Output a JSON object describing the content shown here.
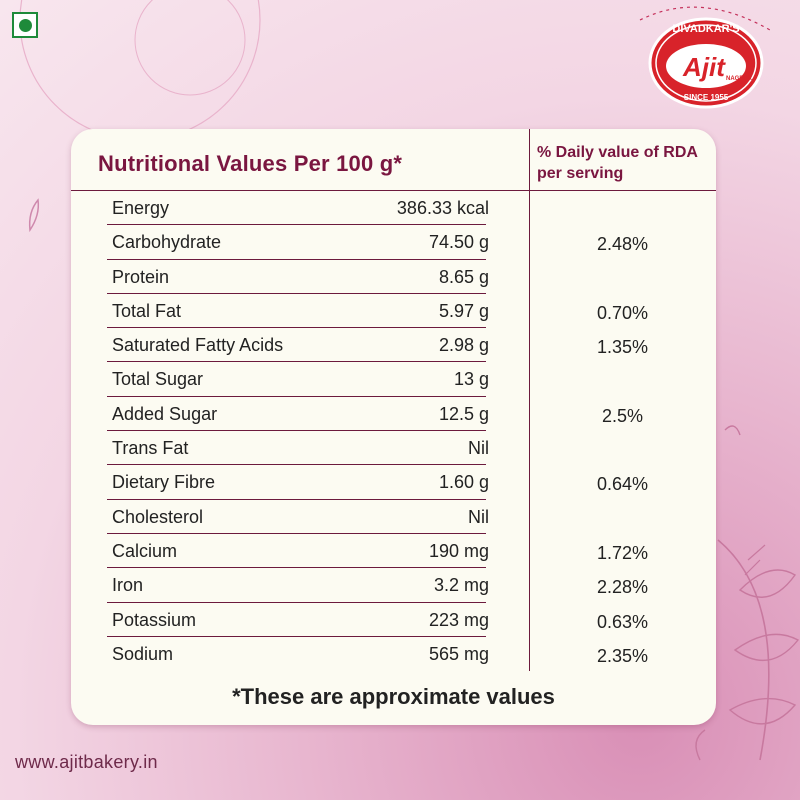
{
  "header": {
    "veg_mark_icon": "veg-symbol-icon",
    "logo": {
      "top_text": "DIVADKAR'S",
      "brand": "Ajit",
      "city": "NAGPUR",
      "since": "SINCE 1955"
    }
  },
  "table": {
    "title": "Nutritional Values Per 100 g*",
    "rda_header": "% Daily value of RDA per serving",
    "rows": [
      {
        "name": "Energy",
        "amount": "386.33 kcal",
        "rda": ""
      },
      {
        "name": "Carbohydrate",
        "amount": "74.50 g",
        "rda": "2.48%"
      },
      {
        "name": "Protein",
        "amount": "8.65 g",
        "rda": ""
      },
      {
        "name": "Total Fat",
        "amount": "5.97 g",
        "rda": "0.70%"
      },
      {
        "name": "Saturated Fatty Acids",
        "amount": "2.98 g",
        "rda": "1.35%"
      },
      {
        "name": "Total Sugar",
        "amount": "13 g",
        "rda": ""
      },
      {
        "name": "Added Sugar",
        "amount": "12.5 g",
        "rda": "2.5%"
      },
      {
        "name": "Trans Fat",
        "amount": "Nil",
        "rda": ""
      },
      {
        "name": "Dietary Fibre",
        "amount": "1.60 g",
        "rda": "0.64%"
      },
      {
        "name": "Cholesterol",
        "amount": "Nil",
        "rda": ""
      },
      {
        "name": "Calcium",
        "amount": "190 mg",
        "rda": "1.72%"
      },
      {
        "name": "Iron",
        "amount": "3.2 mg",
        "rda": "2.28%"
      },
      {
        "name": "Potassium",
        "amount": "223 mg",
        "rda": "0.63%"
      },
      {
        "name": "Sodium",
        "amount": "565 mg",
        "rda": "2.35%"
      }
    ],
    "footnote": "*These are approximate values"
  },
  "footer": {
    "website": "www.ajitbakery.in"
  },
  "colors": {
    "accent": "#7a1640",
    "card_bg": "#fcfbf2",
    "veg_green": "#1e8a3a",
    "logo_red": "#d8232a"
  }
}
